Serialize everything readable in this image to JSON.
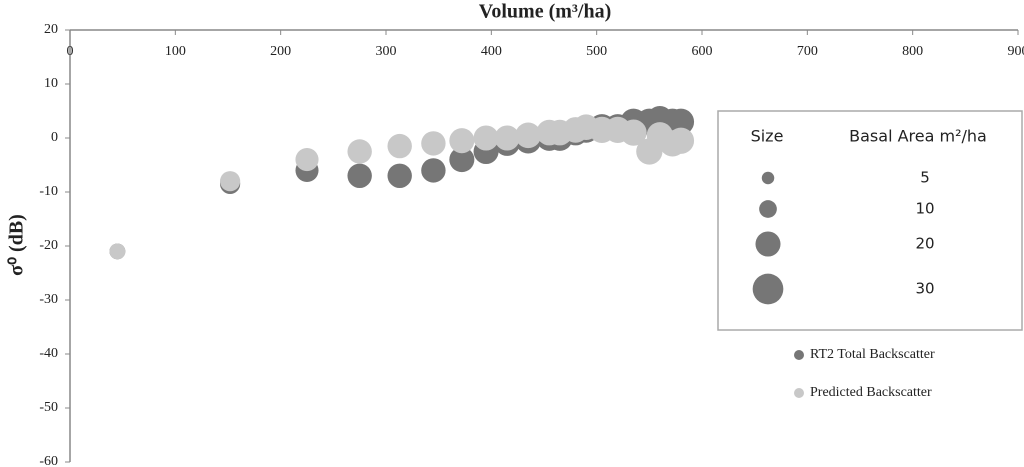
{
  "chart_data": {
    "type": "bubble",
    "title": "Volume (m³/ha)",
    "y_label": "σ⁰ (dB)",
    "xlim": [
      0,
      900
    ],
    "xticks": [
      0,
      100,
      200,
      300,
      400,
      500,
      600,
      700,
      800,
      900
    ],
    "ylim": [
      -60,
      20
    ],
    "yticks": [
      20,
      10,
      0,
      -10,
      -20,
      -30,
      -40,
      -50,
      -60
    ],
    "x": [
      45,
      152,
      225,
      275,
      313,
      345,
      372,
      395,
      415,
      435,
      455,
      465,
      480,
      490,
      505,
      520,
      535,
      550,
      560,
      572,
      580
    ],
    "sizes": [
      8,
      13,
      17,
      19,
      19,
      19,
      20,
      20,
      20,
      21,
      21,
      21,
      21,
      21,
      22,
      22,
      22,
      22,
      22,
      22,
      22
    ],
    "series": [
      {
        "name": "RT2 Total Backscatter",
        "color": "#767676",
        "values": [
          -21,
          -8.5,
          -6,
          -7,
          -7,
          -6,
          -4,
          -2.5,
          -1,
          -0.5,
          0,
          0,
          1,
          1.5,
          2,
          2,
          3,
          3,
          3.5,
          3,
          3
        ]
      },
      {
        "name": "Predicted Backscatter",
        "color": "#c8c8c8",
        "values": [
          -21,
          -8,
          -4,
          -2.5,
          -1.5,
          -1,
          -0.5,
          0,
          0,
          0.5,
          1,
          1,
          1.5,
          2,
          1.5,
          1.5,
          1,
          -2.5,
          0.5,
          -1,
          -0.5
        ]
      }
    ],
    "size_legend": {
      "title": "Size",
      "label": "Basal Area m²/ha",
      "values": [
        5,
        10,
        20,
        30
      ]
    }
  }
}
